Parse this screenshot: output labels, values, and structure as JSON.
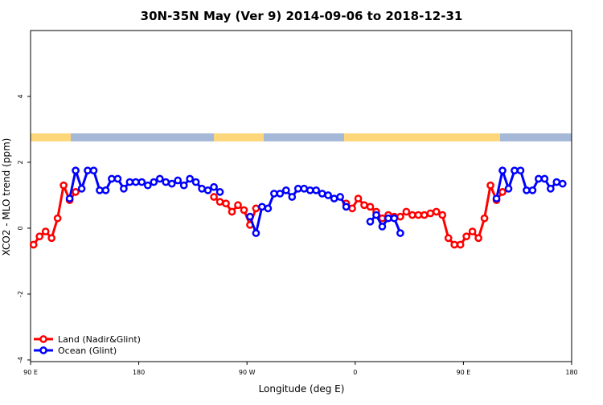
{
  "chart_data": {
    "type": "line",
    "title": "30N-35N May (Ver 9)   2014-09-06 to 2018-12-31",
    "x_label": "Longitude (deg E)",
    "y_label": "XCO2 - MLO trend (ppm)",
    "xlim": [
      90,
      540
    ],
    "ylim": [
      -4.05,
      6
    ],
    "xticks": [
      {
        "value": 90,
        "label": "90 E"
      },
      180,
      {
        "value": 270,
        "label": "90 W"
      },
      {
        "value": 360,
        "label": "0"
      },
      {
        "value": 450,
        "label": "90 E"
      },
      {
        "value": 540,
        "label": "180"
      }
    ],
    "yticks": [
      -4,
      -2,
      0,
      2,
      4
    ],
    "legend": "bottom-left",
    "series": [
      {
        "name": "Land (Nadir&Glint)",
        "color": "#ff0000",
        "x": [
          92.5,
          97.5,
          102.5,
          107.5,
          112.5,
          117.5,
          122.5,
          127.5,
          132.5,
          242.5,
          247.5,
          252.5,
          257.5,
          262.5,
          267.5,
          272.5,
          277.5,
          282.5,
          352.5,
          357.5,
          362.5,
          367.5,
          372.5,
          377.5,
          382.5,
          387.5,
          392.5,
          397.5,
          402.5,
          407.5,
          412.5,
          417.5,
          422.5,
          427.5,
          432.5,
          437.5,
          442.5,
          447.5,
          452.5,
          457.5,
          462.5,
          467.5,
          472.5,
          477.5,
          482.5
        ],
        "values": [
          -0.5,
          -0.25,
          -0.1,
          -0.3,
          0.3,
          1.3,
          0.85,
          1.1,
          null,
          0.95,
          0.8,
          0.75,
          0.5,
          0.7,
          0.55,
          0.1,
          0.6,
          null,
          0.75,
          0.6,
          0.9,
          0.7,
          0.65,
          0.5,
          0.3,
          0.4,
          0.35,
          0.35,
          0.5,
          0.4,
          0.4,
          0.4,
          0.45,
          0.5,
          0.4,
          -0.3,
          -0.5,
          -0.5,
          -0.25,
          -0.1,
          -0.3,
          0.3,
          1.3,
          0.85,
          1.1
        ]
      },
      {
        "name": "Ocean (Glint)",
        "color": "#0000ff",
        "x": [
          122.5,
          127.5,
          132.5,
          137.5,
          142.5,
          147.5,
          152.5,
          157.5,
          162.5,
          167.5,
          172.5,
          177.5,
          182.5,
          187.5,
          192.5,
          197.5,
          202.5,
          207.5,
          212.5,
          217.5,
          222.5,
          227.5,
          232.5,
          237.5,
          242.5,
          247.5,
          252.5,
          272.5,
          277.5,
          282.5,
          287.5,
          292.5,
          297.5,
          302.5,
          307.5,
          312.5,
          317.5,
          322.5,
          327.5,
          332.5,
          337.5,
          342.5,
          347.5,
          352.5,
          357.5,
          372.5,
          377.5,
          382.5,
          387.5,
          392.5,
          397.5,
          402.5,
          477.5,
          482.5,
          487.5,
          492.5,
          497.5,
          502.5,
          507.5,
          512.5,
          517.5,
          522.5,
          527.5,
          532.5
        ],
        "values": [
          0.9,
          1.75,
          1.2,
          1.75,
          1.75,
          1.15,
          1.15,
          1.5,
          1.5,
          1.2,
          1.4,
          1.4,
          1.4,
          1.3,
          1.4,
          1.5,
          1.4,
          1.35,
          1.45,
          1.3,
          1.5,
          1.4,
          1.2,
          1.15,
          1.25,
          1.1,
          null,
          0.35,
          -0.15,
          0.65,
          0.6,
          1.05,
          1.05,
          1.15,
          0.95,
          1.2,
          1.2,
          1.15,
          1.15,
          1.05,
          1.0,
          0.9,
          0.95,
          0.65,
          null,
          0.2,
          0.4,
          0.05,
          0.3,
          0.3,
          -0.15,
          null,
          0.9,
          1.75,
          1.2,
          1.75,
          1.75,
          1.15,
          1.15,
          1.5,
          1.5,
          1.2,
          1.4,
          1.35
        ]
      }
    ]
  }
}
